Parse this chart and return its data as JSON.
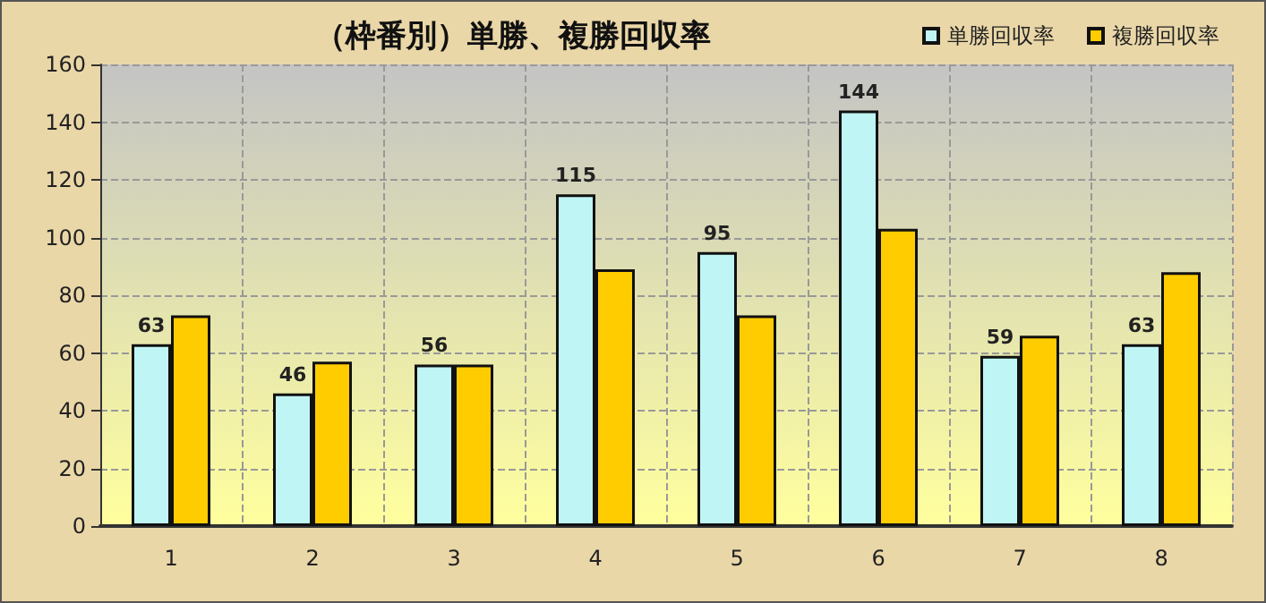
{
  "chart_data": {
    "type": "bar",
    "title": "（枠番別）単勝、複勝回収率",
    "categories": [
      "1",
      "2",
      "3",
      "4",
      "5",
      "6",
      "7",
      "8"
    ],
    "series": [
      {
        "name": "単勝回収率",
        "color": "#bff5f5",
        "values": [
          63,
          46,
          56,
          115,
          95,
          144,
          59,
          63
        ],
        "value_labels": [
          "63",
          "46",
          "56",
          "115",
          "95",
          "144",
          "59",
          "63"
        ]
      },
      {
        "name": "複勝回収率",
        "color": "#ffcc00",
        "values": [
          73,
          57,
          56,
          89,
          73,
          103,
          66,
          88
        ]
      }
    ],
    "ylim": [
      0,
      160
    ],
    "yticks": [
      0,
      20,
      40,
      60,
      80,
      100,
      120,
      140,
      160
    ],
    "grid": true,
    "legend": "top right"
  }
}
